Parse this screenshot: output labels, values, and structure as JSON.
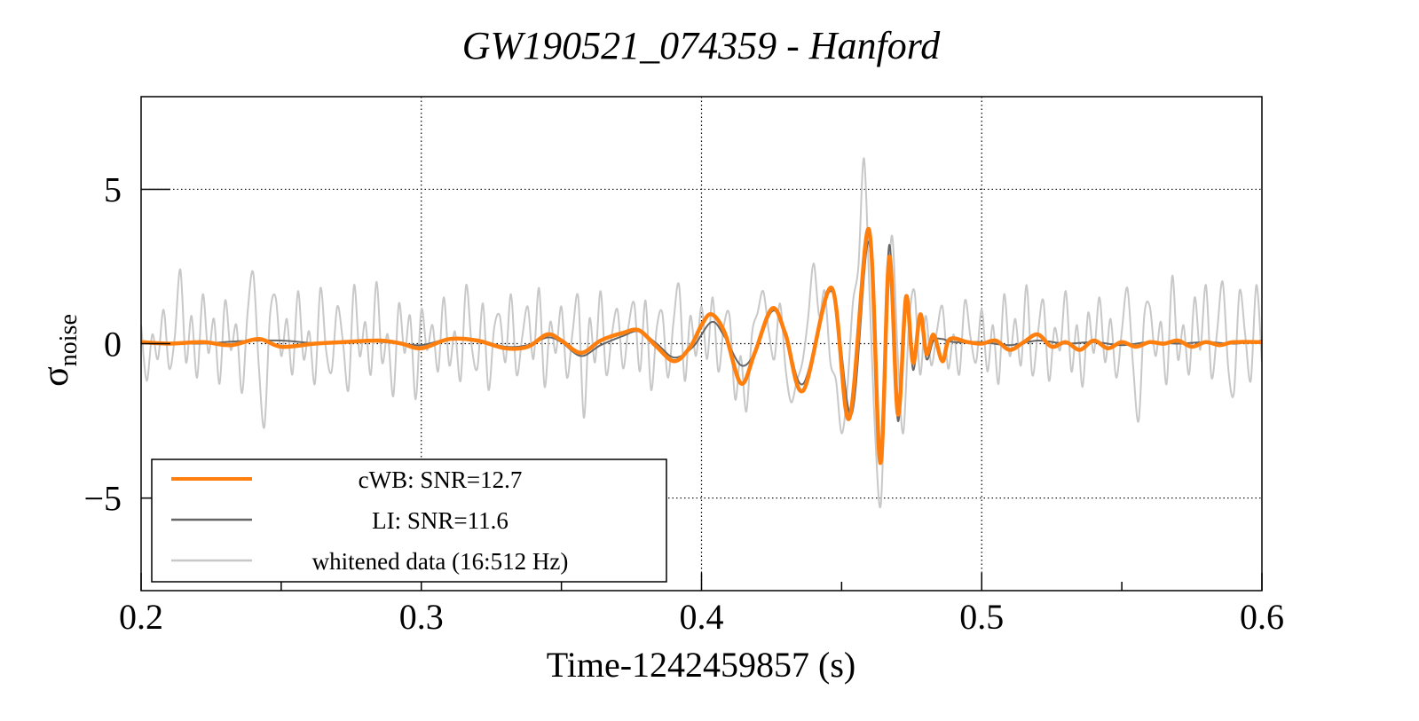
{
  "chart_data": {
    "type": "line",
    "title": "GW190521_074359 - Hanford",
    "xlabel": "Time-1242459857 (s)",
    "ylabel_main": "σ",
    "ylabel_sub": "noise",
    "xlim": [
      0.2,
      0.6
    ],
    "ylim": [
      -8,
      8
    ],
    "grid": true,
    "legend_position": "bottom-left",
    "xticks": [
      0.2,
      0.3,
      0.4,
      0.5,
      0.6
    ],
    "xtick_labels": [
      "0.2",
      "0.3",
      "0.4",
      "0.5",
      "0.6"
    ],
    "xminor": [
      0.25,
      0.35,
      0.45,
      0.55
    ],
    "yticks": [
      5,
      0,
      -5
    ],
    "ytick_labels": [
      "5",
      "0",
      "−5"
    ],
    "colors": {
      "cwb": "#ff7f0e",
      "li": "#666666",
      "whitened": "#c8c8c8"
    },
    "series": [
      {
        "name": "whitened data (16:512 Hz)",
        "key": "whitened",
        "t0": 0.2,
        "dt": 0.002,
        "values": [
          0.6,
          -1.2,
          0.3,
          -0.5,
          1.1,
          -0.8,
          0.2,
          2.4,
          -0.6,
          0.9,
          -1.1,
          1.6,
          -0.3,
          0.8,
          -1.3,
          1.4,
          -0.2,
          0.6,
          -1.6,
          1.0,
          2.3,
          -0.7,
          -2.7,
          0.9,
          1.5,
          -0.4,
          0.8,
          -1.0,
          1.7,
          -0.5,
          0.4,
          -1.3,
          1.8,
          -0.2,
          -0.9,
          1.2,
          0.1,
          -1.5,
          1.9,
          -0.4,
          0.7,
          -1.0,
          2.0,
          -0.6,
          0.3,
          -1.7,
          1.3,
          -0.3,
          0.9,
          -1.8,
          1.1,
          -0.2,
          0.6,
          -0.9,
          1.5,
          -0.7,
          0.4,
          -1.2,
          1.9,
          -0.1,
          -0.8,
          1.3,
          -1.5,
          0.5,
          0.9,
          -0.6,
          1.6,
          -1.0,
          0.2,
          1.2,
          -0.5,
          1.8,
          -1.4,
          0.7,
          -0.3,
          1.2,
          -1.1,
          0.4,
          1.5,
          -2.4,
          0.8,
          -0.6,
          1.7,
          -1.0,
          0.3,
          1.1,
          -0.8,
          0.6,
          1.3,
          -0.9,
          1.4,
          -1.5,
          0.5,
          1.0,
          -1.1,
          0.7,
          1.9,
          -1.2,
          0.9,
          -0.4,
          1.2,
          -0.5,
          1.5,
          -0.9,
          0.6,
          0.9,
          -1.8,
          -0.4,
          -2.2,
          0.3,
          1.0,
          1.7,
          0.4,
          -0.5,
          1.3,
          -0.8,
          -1.9,
          -1.2,
          -0.6,
          0.8,
          2.6,
          0.9,
          1.7,
          -0.6,
          -1.2,
          -2.9,
          -1.5,
          1.3,
          2.5,
          6.0,
          1.5,
          -3.0,
          -5.2,
          0.2,
          3.5,
          -0.3,
          -2.9,
          0.6,
          1.7,
          -1.0,
          0.9,
          -0.7,
          0.4,
          1.2,
          -0.8,
          0.3,
          -1.0,
          1.4,
          0.2,
          -0.6,
          1.1,
          -0.9,
          0.6,
          -1.3,
          1.6,
          -0.4,
          0.8,
          -0.7,
          1.9,
          -1.0,
          0.3,
          1.4,
          -1.2,
          0.5,
          -0.2,
          1.7,
          -0.9,
          0.6,
          -1.4,
          1.0,
          -0.3,
          1.5,
          -0.6,
          0.8,
          -1.1,
          0.4,
          1.8,
          -0.7,
          -2.5,
          0.9,
          1.2,
          -0.4,
          0.7,
          -1.3,
          2.2,
          -0.5,
          0.6,
          -1.0,
          1.5,
          -0.2,
          1.9,
          -1.1,
          0.4,
          2.0,
          -0.8,
          -1.6,
          1.7,
          0.3,
          -1.2,
          1.9,
          -0.6
        ]
      },
      {
        "name": "LI: SNR=11.6",
        "key": "li",
        "points": [
          [
            0.2,
            0.05
          ],
          [
            0.22,
            0.0
          ],
          [
            0.235,
            0.08
          ],
          [
            0.25,
            0.1
          ],
          [
            0.265,
            0.0
          ],
          [
            0.28,
            0.08
          ],
          [
            0.293,
            0.0
          ],
          [
            0.3,
            -0.05
          ],
          [
            0.31,
            0.15
          ],
          [
            0.32,
            0.12
          ],
          [
            0.33,
            -0.1
          ],
          [
            0.338,
            -0.05
          ],
          [
            0.345,
            0.2
          ],
          [
            0.35,
            0.05
          ],
          [
            0.357,
            -0.4
          ],
          [
            0.364,
            -0.05
          ],
          [
            0.372,
            0.25
          ],
          [
            0.3777,
            0.4
          ],
          [
            0.384,
            0.0
          ],
          [
            0.3903,
            -0.45
          ],
          [
            0.397,
            -0.1
          ],
          [
            0.4036,
            0.7
          ],
          [
            0.4084,
            0.2
          ],
          [
            0.4141,
            -0.7
          ],
          [
            0.419,
            -0.3
          ],
          [
            0.4252,
            1.05
          ],
          [
            0.43,
            0.4
          ],
          [
            0.4363,
            -1.3
          ],
          [
            0.4464,
            1.7
          ],
          [
            0.4535,
            -2.3
          ],
          [
            0.4597,
            3.3
          ],
          [
            0.4638,
            -3.6
          ],
          [
            0.467,
            3.2
          ],
          [
            0.4701,
            -2.5
          ],
          [
            0.473,
            1.5
          ],
          [
            0.4755,
            -0.85
          ],
          [
            0.4781,
            0.9
          ],
          [
            0.4803,
            -0.5
          ],
          [
            0.4828,
            0.1
          ],
          [
            0.486,
            0.15
          ],
          [
            0.49,
            0.05
          ],
          [
            0.5,
            0.05
          ],
          [
            0.51,
            -0.05
          ],
          [
            0.52,
            0.1
          ],
          [
            0.53,
            0.0
          ],
          [
            0.54,
            0.05
          ],
          [
            0.55,
            -0.05
          ],
          [
            0.56,
            0.05
          ],
          [
            0.57,
            0.0
          ],
          [
            0.58,
            0.05
          ],
          [
            0.59,
            0.0
          ],
          [
            0.6,
            0.1
          ]
        ]
      },
      {
        "name": "cWB: SNR=12.7",
        "key": "cwb",
        "points": [
          [
            0.2,
            0.05
          ],
          [
            0.21,
            0.0
          ],
          [
            0.222,
            0.05
          ],
          [
            0.232,
            -0.05
          ],
          [
            0.242,
            0.15
          ],
          [
            0.25,
            -0.1
          ],
          [
            0.262,
            0.0
          ],
          [
            0.272,
            0.05
          ],
          [
            0.285,
            0.1
          ],
          [
            0.293,
            0.0
          ],
          [
            0.3,
            -0.15
          ],
          [
            0.31,
            0.15
          ],
          [
            0.32,
            0.1
          ],
          [
            0.33,
            -0.15
          ],
          [
            0.338,
            -0.1
          ],
          [
            0.345,
            0.3
          ],
          [
            0.35,
            0.1
          ],
          [
            0.357,
            -0.3
          ],
          [
            0.364,
            0.1
          ],
          [
            0.372,
            0.35
          ],
          [
            0.3777,
            0.43
          ],
          [
            0.384,
            -0.1
          ],
          [
            0.3903,
            -0.57
          ],
          [
            0.396,
            -0.1
          ],
          [
            0.4,
            0.6
          ],
          [
            0.4036,
            0.95
          ],
          [
            0.4084,
            0.33
          ],
          [
            0.4141,
            -1.29
          ],
          [
            0.419,
            -0.3
          ],
          [
            0.4252,
            1.14
          ],
          [
            0.43,
            0.3
          ],
          [
            0.4363,
            -1.52
          ],
          [
            0.4464,
            1.81
          ],
          [
            0.4527,
            -2.43
          ],
          [
            0.4597,
            3.71
          ],
          [
            0.4638,
            -3.86
          ],
          [
            0.467,
            2.81
          ],
          [
            0.4701,
            -2.29
          ],
          [
            0.473,
            1.52
          ],
          [
            0.4755,
            -0.62
          ],
          [
            0.4781,
            0.95
          ],
          [
            0.4803,
            -0.33
          ],
          [
            0.4828,
            0.29
          ],
          [
            0.486,
            -0.57
          ],
          [
            0.4885,
            0.14
          ],
          [
            0.495,
            0.05
          ],
          [
            0.5,
            0.0
          ],
          [
            0.505,
            0.1
          ],
          [
            0.51,
            -0.2
          ],
          [
            0.515,
            0.05
          ],
          [
            0.52,
            0.3
          ],
          [
            0.525,
            -0.1
          ],
          [
            0.53,
            0.05
          ],
          [
            0.535,
            -0.2
          ],
          [
            0.54,
            0.1
          ],
          [
            0.545,
            -0.15
          ],
          [
            0.55,
            0.05
          ],
          [
            0.555,
            -0.1
          ],
          [
            0.56,
            0.05
          ],
          [
            0.565,
            0.0
          ],
          [
            0.57,
            0.1
          ],
          [
            0.575,
            -0.1
          ],
          [
            0.58,
            0.05
          ],
          [
            0.585,
            -0.05
          ],
          [
            0.59,
            0.05
          ],
          [
            0.6,
            0.05
          ]
        ]
      }
    ],
    "legend": [
      {
        "label": "cWB: SNR=12.7",
        "key": "cwb"
      },
      {
        "label": "LI: SNR=11.6",
        "key": "li"
      },
      {
        "label": "whitened data (16:512 Hz)",
        "key": "whitened"
      }
    ]
  }
}
